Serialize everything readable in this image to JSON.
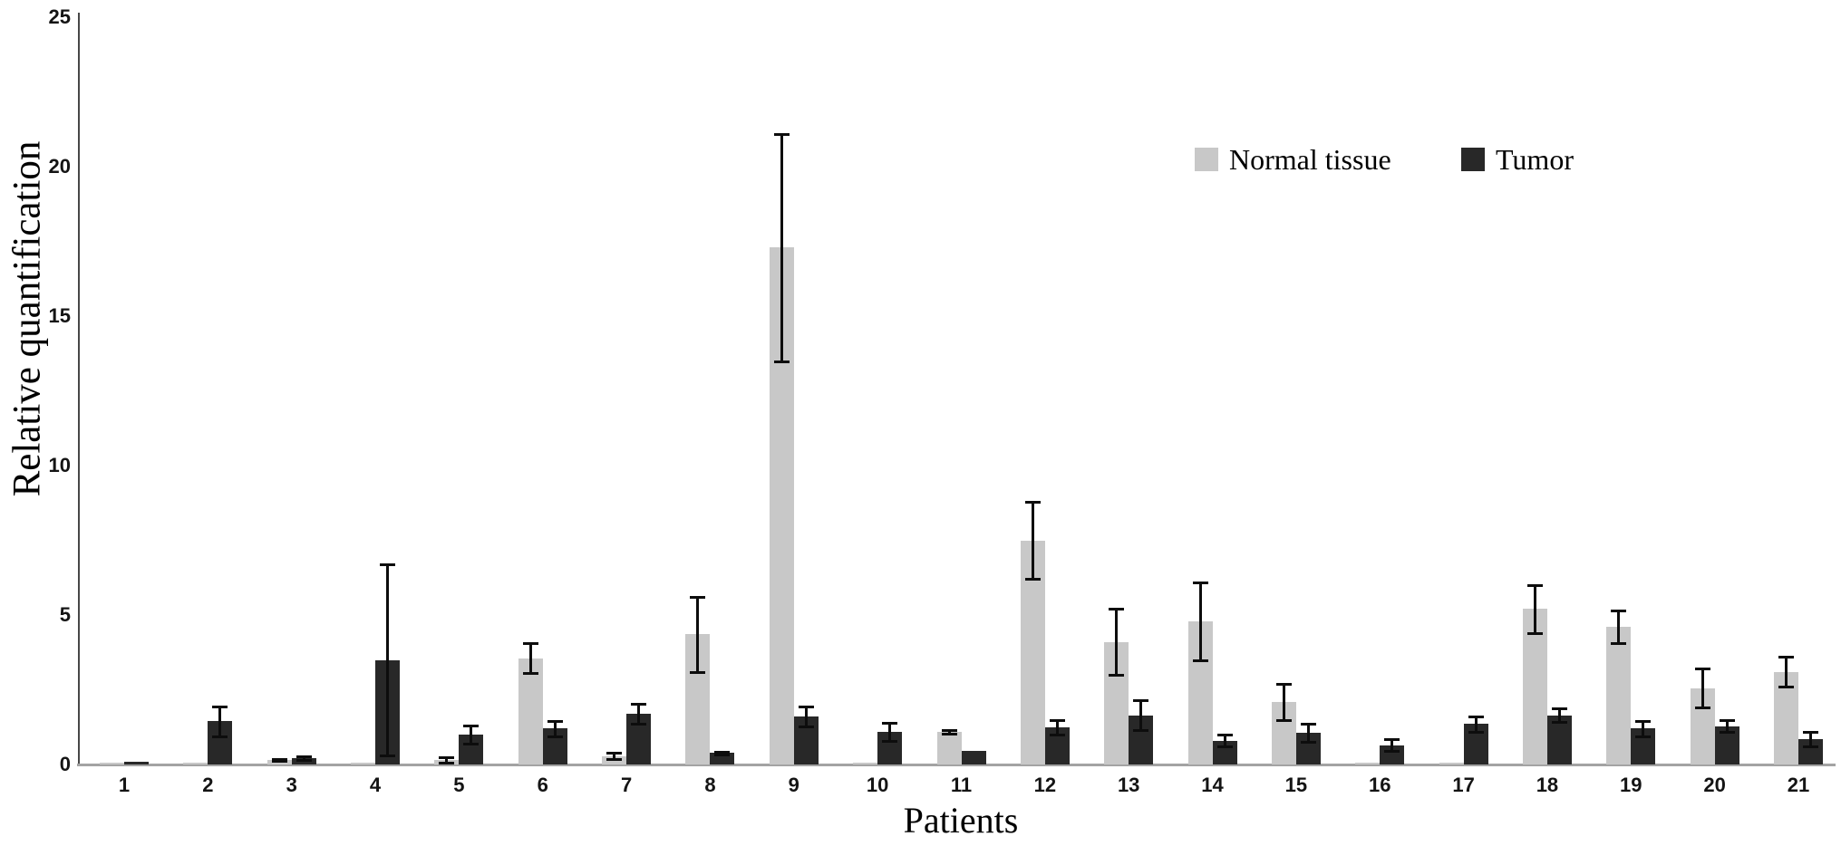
{
  "chart_data": {
    "type": "bar",
    "title": "",
    "xlabel": "Patients",
    "ylabel": "Relative quantification",
    "ylim": [
      0,
      25
    ],
    "yticks": [
      0,
      5,
      10,
      15,
      20,
      25
    ],
    "grid": false,
    "legend_position": "top-right",
    "error_bars": true,
    "categories": [
      "1",
      "2",
      "3",
      "4",
      "5",
      "6",
      "7",
      "8",
      "9",
      "10",
      "11",
      "12",
      "13",
      "14",
      "15",
      "16",
      "17",
      "18",
      "19",
      "20",
      "21"
    ],
    "series": [
      {
        "name": "Normal tissue",
        "color": "#c8c8c8",
        "values": [
          0.06,
          0.07,
          0.15,
          0.06,
          0.15,
          3.55,
          0.28,
          4.35,
          17.3,
          0.05,
          1.1,
          7.5,
          4.1,
          4.8,
          2.1,
          0.05,
          0.06,
          5.2,
          4.6,
          2.55,
          3.1
        ],
        "errors": [
          0,
          0,
          0.04,
          0,
          0.1,
          0.5,
          0.1,
          1.25,
          3.8,
          0,
          0.06,
          1.3,
          1.1,
          1.3,
          0.6,
          0,
          0,
          0.8,
          0.55,
          0.65,
          0.5
        ]
      },
      {
        "name": "Tumor",
        "color": "#282828",
        "values": [
          0.08,
          1.45,
          0.22,
          3.5,
          1.0,
          1.2,
          1.7,
          0.38,
          1.6,
          1.1,
          0.45,
          1.25,
          1.65,
          0.8,
          1.05,
          0.65,
          1.35,
          1.65,
          1.2,
          1.28,
          0.85
        ],
        "errors": [
          0,
          0.5,
          0.06,
          3.2,
          0.3,
          0.25,
          0.33,
          0.05,
          0.33,
          0.3,
          0,
          0.25,
          0.5,
          0.2,
          0.3,
          0.2,
          0.25,
          0.22,
          0.25,
          0.2,
          0.25
        ]
      }
    ],
    "axis_colors": {
      "y_axis": "#474747",
      "x_axis": "#a3a3a3",
      "error_bar": "#0d0d0d",
      "tick_text": "#141414"
    }
  }
}
